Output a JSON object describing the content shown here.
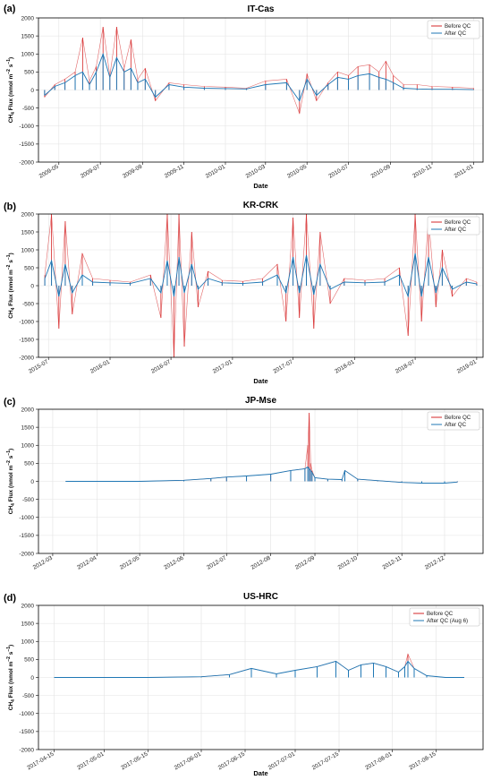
{
  "colors": {
    "before": "#d62728",
    "after": "#1f77b4",
    "grid": "#e3e3e3",
    "axis": "#000000"
  },
  "chart_data": [
    {
      "panel": "(a)",
      "title": "IT-Cas",
      "type": "line",
      "xlabel": "Date",
      "ylabel_main": "CH",
      "ylabel_sub": "4",
      "ylabel_rest": " Flux (nmol m",
      "ylabel_sup1": "−2",
      "ylabel_mid": " s",
      "ylabel_sup2": "−1",
      "ylabel_end": ")",
      "ylim": [
        -2000,
        2000
      ],
      "yticks": [
        -2000,
        -1500,
        -1000,
        -500,
        0,
        500,
        1000,
        1500,
        2000
      ],
      "xlim": [
        "2009-04-01",
        "2011-01-15"
      ],
      "xticks": [
        "2009-05",
        "2009-07",
        "2009-09",
        "2009-11",
        "2010-01",
        "2010-03",
        "2010-05",
        "2010-07",
        "2010-09",
        "2010-11",
        "2011-01"
      ],
      "xtick_dates": [
        "2009-05-01",
        "2009-07-01",
        "2009-09-01",
        "2009-11-01",
        "2010-01-01",
        "2010-03-01",
        "2010-05-01",
        "2010-07-01",
        "2010-09-01",
        "2010-11-01",
        "2011-01-01"
      ],
      "legend": [
        "Before QC",
        "After QC"
      ],
      "legend_position": "top-right",
      "grid": true,
      "series": [
        {
          "name": "Before QC",
          "x": [
            "2009-04-10",
            "2009-04-25",
            "2009-05-10",
            "2009-05-25",
            "2009-06-05",
            "2009-06-15",
            "2009-06-25",
            "2009-07-05",
            "2009-07-15",
            "2009-07-25",
            "2009-08-05",
            "2009-08-15",
            "2009-08-25",
            "2009-09-05",
            "2009-09-20",
            "2009-10-10",
            "2009-11-01",
            "2009-12-01",
            "2010-01-01",
            "2010-02-01",
            "2010-03-01",
            "2010-04-01",
            "2010-04-20",
            "2010-05-01",
            "2010-05-15",
            "2010-06-01",
            "2010-06-15",
            "2010-07-01",
            "2010-07-15",
            "2010-08-01",
            "2010-08-15",
            "2010-08-25",
            "2010-09-05",
            "2010-09-20",
            "2010-10-10",
            "2010-11-01",
            "2010-12-01",
            "2011-01-01"
          ],
          "y": [
            -200,
            150,
            300,
            500,
            1450,
            250,
            650,
            1750,
            400,
            1750,
            600,
            1400,
            300,
            600,
            -300,
            200,
            150,
            100,
            80,
            50,
            250,
            300,
            -650,
            450,
            -300,
            200,
            500,
            400,
            650,
            700,
            500,
            800,
            400,
            150,
            150,
            100,
            80,
            50
          ]
        },
        {
          "name": "After QC",
          "x": [
            "2009-04-10",
            "2009-04-25",
            "2009-05-10",
            "2009-05-25",
            "2009-06-05",
            "2009-06-15",
            "2009-06-25",
            "2009-07-05",
            "2009-07-15",
            "2009-07-25",
            "2009-08-05",
            "2009-08-15",
            "2009-08-25",
            "2009-09-05",
            "2009-09-20",
            "2009-10-10",
            "2009-11-01",
            "2009-12-01",
            "2010-01-01",
            "2010-02-01",
            "2010-03-01",
            "2010-04-01",
            "2010-04-20",
            "2010-05-01",
            "2010-05-15",
            "2010-06-01",
            "2010-06-15",
            "2010-07-01",
            "2010-07-15",
            "2010-08-01",
            "2010-08-15",
            "2010-08-25",
            "2010-09-05",
            "2010-09-20",
            "2010-10-10",
            "2010-11-01",
            "2010-12-01",
            "2011-01-01"
          ],
          "y": [
            -150,
            100,
            200,
            400,
            500,
            150,
            500,
            1000,
            350,
            900,
            500,
            600,
            200,
            300,
            -200,
            150,
            80,
            50,
            40,
            30,
            150,
            200,
            -300,
            300,
            -150,
            150,
            350,
            300,
            400,
            450,
            350,
            300,
            200,
            50,
            30,
            20,
            20,
            10
          ]
        }
      ]
    },
    {
      "panel": "(b)",
      "title": "KR-CRK",
      "type": "line",
      "xlabel": "Date",
      "ylabel_main": "CH",
      "ylabel_sub": "4",
      "ylabel_rest": " Flux (nmol m",
      "ylabel_sup1": "−2",
      "ylabel_mid": " s",
      "ylabel_sup2": "−1",
      "ylabel_end": ")",
      "ylim": [
        -2000,
        2000
      ],
      "yticks": [
        -2000,
        -1500,
        -1000,
        -500,
        0,
        500,
        1000,
        1500,
        2000
      ],
      "xlim": [
        "2015-06-01",
        "2019-01-20"
      ],
      "xticks": [
        "2015-07",
        "2016-01",
        "2016-07",
        "2017-01",
        "2017-07",
        "2018-01",
        "2018-07",
        "2019-01"
      ],
      "xtick_dates": [
        "2015-07-01",
        "2016-01-01",
        "2016-07-01",
        "2017-01-01",
        "2017-07-01",
        "2018-01-01",
        "2018-07-01",
        "2019-01-01"
      ],
      "legend": [
        "Before QC",
        "After QC"
      ],
      "legend_position": "top-right",
      "grid": true,
      "series": [
        {
          "name": "Before QC",
          "x": [
            "2015-06-20",
            "2015-07-10",
            "2015-08-01",
            "2015-08-20",
            "2015-09-10",
            "2015-10-10",
            "2015-11-10",
            "2016-01-01",
            "2016-03-01",
            "2016-05-01",
            "2016-06-01",
            "2016-06-20",
            "2016-07-10",
            "2016-07-25",
            "2016-08-10",
            "2016-09-01",
            "2016-09-20",
            "2016-10-20",
            "2016-12-01",
            "2017-02-01",
            "2017-04-01",
            "2017-05-15",
            "2017-06-10",
            "2017-07-01",
            "2017-07-20",
            "2017-08-10",
            "2017-09-01",
            "2017-09-20",
            "2017-10-20",
            "2017-12-01",
            "2018-02-01",
            "2018-04-01",
            "2018-05-15",
            "2018-06-10",
            "2018-07-01",
            "2018-07-20",
            "2018-08-10",
            "2018-09-01",
            "2018-09-20",
            "2018-10-20",
            "2018-12-01",
            "2019-01-01"
          ],
          "y": [
            300,
            2000,
            -1200,
            1800,
            -800,
            900,
            200,
            150,
            100,
            300,
            -900,
            2000,
            -2000,
            2000,
            -1700,
            1500,
            -600,
            400,
            150,
            120,
            200,
            600,
            -1000,
            1900,
            -900,
            2000,
            -1200,
            1500,
            -500,
            200,
            150,
            200,
            500,
            -1400,
            2000,
            -1000,
            1900,
            -600,
            1000,
            -300,
            200,
            100
          ]
        },
        {
          "name": "After QC",
          "x": [
            "2015-06-20",
            "2015-07-10",
            "2015-08-01",
            "2015-08-20",
            "2015-09-10",
            "2015-10-10",
            "2015-11-10",
            "2016-01-01",
            "2016-03-01",
            "2016-05-01",
            "2016-06-01",
            "2016-06-20",
            "2016-07-10",
            "2016-07-25",
            "2016-08-10",
            "2016-09-01",
            "2016-09-20",
            "2016-10-20",
            "2016-12-01",
            "2017-02-01",
            "2017-04-01",
            "2017-05-15",
            "2017-06-10",
            "2017-07-01",
            "2017-07-20",
            "2017-08-10",
            "2017-09-01",
            "2017-09-20",
            "2017-10-20",
            "2017-12-01",
            "2018-02-01",
            "2018-04-01",
            "2018-05-15",
            "2018-06-10",
            "2018-07-01",
            "2018-07-20",
            "2018-08-10",
            "2018-09-01",
            "2018-09-20",
            "2018-10-20",
            "2018-12-01",
            "2019-01-01"
          ],
          "y": [
            200,
            700,
            -300,
            600,
            -200,
            300,
            100,
            80,
            60,
            200,
            -200,
            700,
            -300,
            800,
            -200,
            600,
            -100,
            200,
            80,
            60,
            100,
            300,
            -200,
            800,
            -200,
            850,
            -250,
            600,
            -100,
            100,
            80,
            100,
            300,
            -300,
            900,
            -300,
            800,
            -200,
            500,
            -100,
            100,
            50
          ]
        }
      ]
    },
    {
      "panel": "(c)",
      "title": "JP-Mse",
      "type": "line",
      "xlabel": "",
      "ylabel_main": "CH",
      "ylabel_sub": "4",
      "ylabel_rest": " Flux (nmol m",
      "ylabel_sup1": "−2",
      "ylabel_mid": " s",
      "ylabel_sup2": "−1",
      "ylabel_end": ")",
      "ylim": [
        -2000,
        2000
      ],
      "yticks": [
        -2000,
        -1500,
        -1000,
        -500,
        0,
        500,
        1000,
        1500,
        2000
      ],
      "xlim": [
        "2012-02-20",
        "2012-12-28"
      ],
      "xticks": [
        "2012-03",
        "2012-04",
        "2012-05",
        "2012-06",
        "2012-07",
        "2012-08",
        "2012-09",
        "2012-10",
        "2012-11",
        "2012-12"
      ],
      "xtick_dates": [
        "2012-03-01",
        "2012-04-01",
        "2012-05-01",
        "2012-06-01",
        "2012-07-01",
        "2012-08-01",
        "2012-09-01",
        "2012-10-01",
        "2012-11-01",
        "2012-12-01"
      ],
      "legend": [
        "Before QC",
        "After QC"
      ],
      "legend_position": "top-right",
      "grid": true,
      "series": [
        {
          "name": "Before QC",
          "x": [
            "2012-03-10",
            "2012-04-01",
            "2012-05-01",
            "2012-06-01",
            "2012-06-20",
            "2012-07-01",
            "2012-07-15",
            "2012-08-01",
            "2012-08-15",
            "2012-08-25",
            "2012-08-27",
            "2012-08-28",
            "2012-08-29",
            "2012-08-30",
            "2012-09-01",
            "2012-09-10",
            "2012-09-20",
            "2012-09-22",
            "2012-10-01",
            "2012-10-15",
            "2012-11-01",
            "2012-11-15",
            "2012-12-01",
            "2012-12-10"
          ],
          "y": [
            0,
            0,
            0,
            30,
            80,
            120,
            150,
            200,
            300,
            350,
            1000,
            1900,
            500,
            300,
            100,
            60,
            50,
            300,
            60,
            20,
            -30,
            -50,
            -50,
            -20
          ]
        },
        {
          "name": "After QC",
          "x": [
            "2012-03-10",
            "2012-04-01",
            "2012-05-01",
            "2012-06-01",
            "2012-06-20",
            "2012-07-01",
            "2012-07-15",
            "2012-08-01",
            "2012-08-15",
            "2012-08-25",
            "2012-08-27",
            "2012-08-28",
            "2012-08-29",
            "2012-08-30",
            "2012-09-01",
            "2012-09-10",
            "2012-09-20",
            "2012-09-22",
            "2012-10-01",
            "2012-10-15",
            "2012-11-01",
            "2012-11-15",
            "2012-12-01",
            "2012-12-10"
          ],
          "y": [
            0,
            0,
            0,
            30,
            80,
            120,
            150,
            200,
            300,
            350,
            400,
            350,
            300,
            250,
            100,
            60,
            50,
            300,
            60,
            20,
            -30,
            -50,
            -50,
            -20
          ]
        }
      ]
    },
    {
      "panel": "(d)",
      "title": "US-HRC",
      "type": "line",
      "xlabel": "Date",
      "ylabel_main": "CH",
      "ylabel_sub": "4",
      "ylabel_rest": " Flux (nmol m",
      "ylabel_sup1": "−2",
      "ylabel_mid": " s",
      "ylabel_sup2": "−1",
      "ylabel_end": ")",
      "ylim": [
        -2000,
        2000
      ],
      "yticks": [
        -2000,
        -1500,
        -1000,
        -500,
        0,
        500,
        1000,
        1500,
        2000
      ],
      "xlim": [
        "2017-04-10",
        "2017-08-30"
      ],
      "xticks": [
        "2017-04-15",
        "2017-05-01",
        "2017-05-15",
        "2017-06-01",
        "2017-06-15",
        "2017-07-01",
        "2017-07-15",
        "2017-08-01",
        "2017-08-15"
      ],
      "xtick_dates": [
        "2017-04-15",
        "2017-05-01",
        "2017-05-15",
        "2017-06-01",
        "2017-06-15",
        "2017-07-01",
        "2017-07-15",
        "2017-08-01",
        "2017-08-15"
      ],
      "legend": [
        "Before QC",
        "After QC (Aug 6)"
      ],
      "legend_position": "top-right",
      "grid": true,
      "series": [
        {
          "name": "Before QC",
          "x": [
            "2017-04-15",
            "2017-05-01",
            "2017-05-15",
            "2017-06-01",
            "2017-06-10",
            "2017-06-17",
            "2017-06-25",
            "2017-07-01",
            "2017-07-08",
            "2017-07-14",
            "2017-07-18",
            "2017-07-22",
            "2017-07-26",
            "2017-07-30",
            "2017-08-03",
            "2017-08-05",
            "2017-08-06",
            "2017-08-08",
            "2017-08-12",
            "2017-08-18",
            "2017-08-24"
          ],
          "y": [
            0,
            0,
            0,
            20,
            80,
            250,
            100,
            200,
            300,
            450,
            200,
            350,
            400,
            300,
            150,
            300,
            650,
            250,
            50,
            0,
            0
          ]
        },
        {
          "name": "After QC (Aug 6)",
          "x": [
            "2017-04-15",
            "2017-05-01",
            "2017-05-15",
            "2017-06-01",
            "2017-06-10",
            "2017-06-17",
            "2017-06-25",
            "2017-07-01",
            "2017-07-08",
            "2017-07-14",
            "2017-07-18",
            "2017-07-22",
            "2017-07-26",
            "2017-07-30",
            "2017-08-03",
            "2017-08-05",
            "2017-08-06",
            "2017-08-08",
            "2017-08-12",
            "2017-08-18",
            "2017-08-24"
          ],
          "y": [
            0,
            0,
            0,
            20,
            80,
            250,
            100,
            200,
            300,
            450,
            200,
            350,
            400,
            300,
            150,
            300,
            450,
            250,
            50,
            0,
            0
          ]
        }
      ]
    }
  ]
}
